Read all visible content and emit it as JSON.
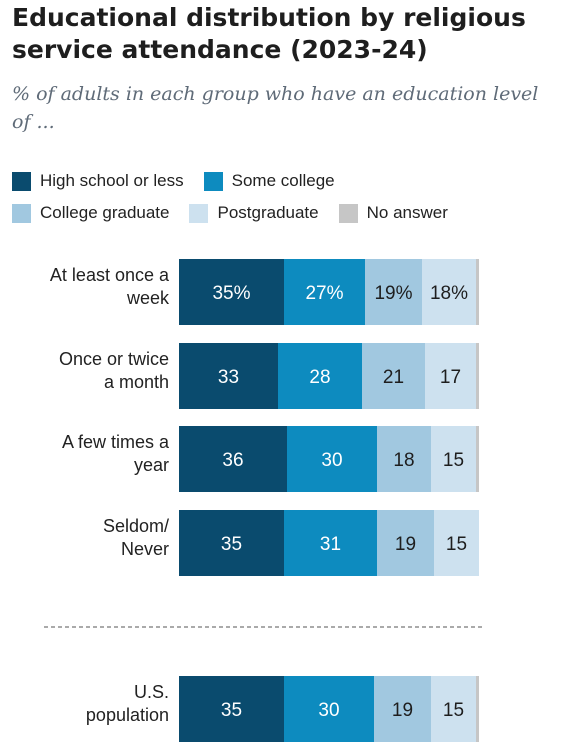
{
  "title": "Educational distribution by religious service attendance (2023-24)",
  "subtitle": "% of adults in each group who have an education level of ...",
  "legend": [
    {
      "name": "High school or less",
      "color": "#0a4b6e"
    },
    {
      "name": "Some college",
      "color": "#0d8bbf"
    },
    {
      "name": "College graduate",
      "color": "#a1c8e0"
    },
    {
      "name": "Postgraduate",
      "color": "#cde1ef"
    },
    {
      "name": "No answer",
      "color": "#c6c6c6"
    }
  ],
  "chart_data": {
    "type": "bar",
    "orientation": "horizontal",
    "stacked": true,
    "categories": [
      "At least once a week",
      "Once or twice a month",
      "A few times a year",
      "Seldom/ Never",
      "U.S. population"
    ],
    "category_lines": [
      [
        "At least once a",
        "week"
      ],
      [
        "Once or twice",
        "a month"
      ],
      [
        "A few times a",
        "year"
      ],
      [
        "Seldom/",
        "Never"
      ],
      [
        "U.S.",
        "population"
      ]
    ],
    "series": [
      {
        "name": "High school or less",
        "values": [
          35,
          33,
          36,
          35,
          35
        ],
        "labels": [
          "35%",
          "33",
          "36",
          "35",
          "35"
        ]
      },
      {
        "name": "Some college",
        "values": [
          27,
          28,
          30,
          31,
          30
        ],
        "labels": [
          "27%",
          "28",
          "30",
          "31",
          "30"
        ]
      },
      {
        "name": "College graduate",
        "values": [
          19,
          21,
          18,
          19,
          19
        ],
        "labels": [
          "19%",
          "21",
          "18",
          "19",
          "19"
        ]
      },
      {
        "name": "Postgraduate",
        "values": [
          18,
          17,
          15,
          15,
          15
        ],
        "labels": [
          "18%",
          "17",
          "15",
          "15",
          "15"
        ]
      },
      {
        "name": "No answer",
        "values": [
          1,
          1,
          1,
          0,
          1
        ],
        "labels": [
          "",
          "",
          "",
          "",
          ""
        ]
      }
    ],
    "colors": [
      "#0a4b6e",
      "#0d8bbf",
      "#a1c8e0",
      "#cde1ef",
      "#c6c6c6"
    ],
    "label_colors": [
      "#ffffff",
      "#ffffff",
      "#1e1e1e",
      "#1e1e1e",
      "#1e1e1e"
    ],
    "xlim": [
      0,
      100
    ],
    "grid": false,
    "legend_position": "top-left",
    "separator_before": "U.S. population"
  }
}
